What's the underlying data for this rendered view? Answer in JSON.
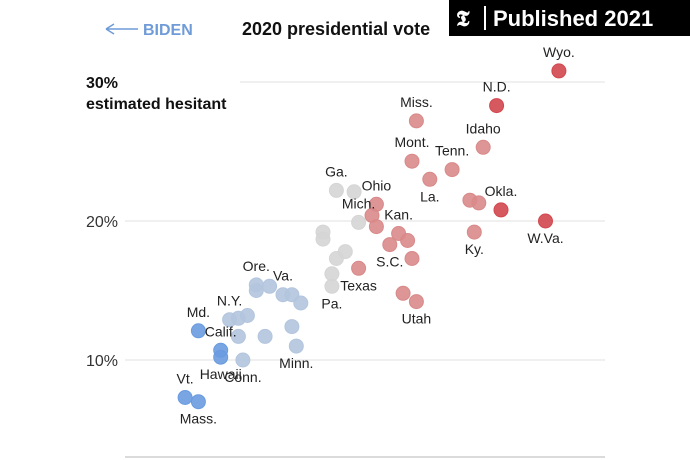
{
  "badge": {
    "text": "Published 2021",
    "logo": "𝕿"
  },
  "chart_data": {
    "type": "scatter",
    "title": "2020 presidential vote",
    "left_direction_label": "BIDEN",
    "ylabel": "30%",
    "ylabel_sub": "estimated hesitant",
    "yticks": [
      "10%",
      "20%"
    ],
    "ylim": [
      2,
      33
    ],
    "xlim": [
      0,
      100
    ],
    "colors": {
      "blue_strong": "#6a9be0",
      "blue_light": "#b3c5de",
      "gray": "#d5d5d5",
      "red_light": "#d98989",
      "red_strong": "#d2474e"
    },
    "points": [
      {
        "label": "Wyo.",
        "x": 93,
        "y": 30.8,
        "color": "#d2474e"
      },
      {
        "label": "N.D.",
        "x": 79,
        "y": 28.3,
        "color": "#d2474e"
      },
      {
        "label": "Miss.",
        "x": 61,
        "y": 27.2,
        "color": "#d98989"
      },
      {
        "label": "Idaho",
        "x": 76,
        "y": 25.3,
        "color": "#d98989"
      },
      {
        "label": "Mont.",
        "x": 60,
        "y": 24.3,
        "color": "#d98989"
      },
      {
        "label": "Tenn.",
        "x": 69,
        "y": 23.7,
        "color": "#d98989"
      },
      {
        "label": "La.",
        "x": 64,
        "y": 23.0,
        "color": "#d98989"
      },
      {
        "label": "",
        "x": 47,
        "y": 22.1,
        "color": "#d5d5d5"
      },
      {
        "label": "Ga.",
        "x": 43,
        "y": 22.2,
        "color": "#d5d5d5"
      },
      {
        "label": "Ohio",
        "x": 52,
        "y": 21.2,
        "color": "#d98989"
      },
      {
        "label": "",
        "x": 73,
        "y": 21.5,
        "color": "#d98989"
      },
      {
        "label": "",
        "x": 75,
        "y": 21.3,
        "color": "#d98989"
      },
      {
        "label": "Okla.",
        "x": 80,
        "y": 20.8,
        "color": "#d2474e"
      },
      {
        "label": "W.Va.",
        "x": 90,
        "y": 20.0,
        "color": "#d2474e"
      },
      {
        "label": "",
        "x": 51,
        "y": 20.4,
        "color": "#d98989"
      },
      {
        "label": "",
        "x": 52,
        "y": 19.6,
        "color": "#d98989"
      },
      {
        "label": "Mich.",
        "x": 48,
        "y": 19.9,
        "color": "#d5d5d5"
      },
      {
        "label": "",
        "x": 40,
        "y": 19.2,
        "color": "#d5d5d5"
      },
      {
        "label": "",
        "x": 40,
        "y": 18.7,
        "color": "#d5d5d5"
      },
      {
        "label": "Kan.",
        "x": 57,
        "y": 19.1,
        "color": "#d98989"
      },
      {
        "label": "",
        "x": 59,
        "y": 18.6,
        "color": "#d98989"
      },
      {
        "label": "S.C.",
        "x": 55,
        "y": 18.3,
        "color": "#d98989"
      },
      {
        "label": "Ky.",
        "x": 74,
        "y": 19.2,
        "color": "#d98989"
      },
      {
        "label": "",
        "x": 45,
        "y": 17.8,
        "color": "#d5d5d5"
      },
      {
        "label": "",
        "x": 43,
        "y": 17.3,
        "color": "#d5d5d5"
      },
      {
        "label": "",
        "x": 60,
        "y": 17.3,
        "color": "#d98989"
      },
      {
        "label": "Texas",
        "x": 48,
        "y": 16.6,
        "color": "#d98989"
      },
      {
        "label": "",
        "x": 42,
        "y": 16.2,
        "color": "#d5d5d5"
      },
      {
        "label": "Pa.",
        "x": 42,
        "y": 15.3,
        "color": "#d5d5d5"
      },
      {
        "label": "Ore.",
        "x": 25,
        "y": 15.4,
        "color": "#b3c5de"
      },
      {
        "label": "",
        "x": 28,
        "y": 15.3,
        "color": "#b3c5de"
      },
      {
        "label": "",
        "x": 25,
        "y": 15.0,
        "color": "#b3c5de"
      },
      {
        "label": "Va.",
        "x": 31,
        "y": 14.7,
        "color": "#b3c5de"
      },
      {
        "label": "",
        "x": 33,
        "y": 14.7,
        "color": "#b3c5de"
      },
      {
        "label": "",
        "x": 35,
        "y": 14.1,
        "color": "#b3c5de"
      },
      {
        "label": "",
        "x": 58,
        "y": 14.8,
        "color": "#d98989"
      },
      {
        "label": "Utah",
        "x": 61,
        "y": 14.2,
        "color": "#d98989"
      },
      {
        "label": "N.Y.",
        "x": 19,
        "y": 12.9,
        "color": "#b3c5de"
      },
      {
        "label": "",
        "x": 21,
        "y": 13.0,
        "color": "#b3c5de"
      },
      {
        "label": "",
        "x": 23,
        "y": 13.2,
        "color": "#b3c5de"
      },
      {
        "label": "Md.",
        "x": 12,
        "y": 12.1,
        "color": "#6a9be0"
      },
      {
        "label": "",
        "x": 21,
        "y": 11.7,
        "color": "#b3c5de"
      },
      {
        "label": "",
        "x": 27,
        "y": 11.7,
        "color": "#b3c5de"
      },
      {
        "label": "",
        "x": 33,
        "y": 12.4,
        "color": "#b3c5de"
      },
      {
        "label": "Minn.",
        "x": 34,
        "y": 11.0,
        "color": "#b3c5de"
      },
      {
        "label": "Calif.",
        "x": 17,
        "y": 10.7,
        "color": "#6a9be0"
      },
      {
        "label": "Hawaii",
        "x": 17,
        "y": 10.2,
        "color": "#6a9be0"
      },
      {
        "label": "Conn.",
        "x": 22,
        "y": 10.0,
        "color": "#b3c5de"
      },
      {
        "label": "Vt.",
        "x": 9,
        "y": 7.3,
        "color": "#6a9be0"
      },
      {
        "label": "Mass.",
        "x": 12,
        "y": 7.0,
        "color": "#6a9be0"
      }
    ]
  }
}
